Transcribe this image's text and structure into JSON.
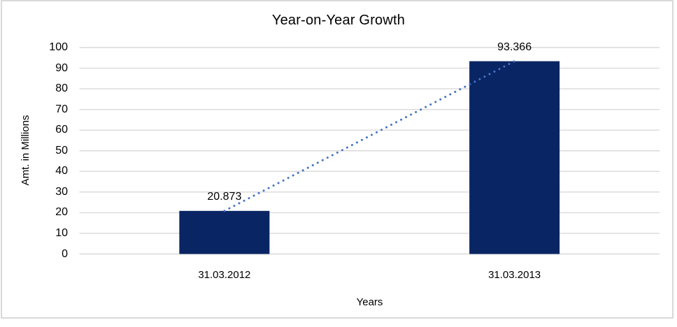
{
  "chart_data": {
    "type": "bar",
    "title": "Year-on-Year Growth",
    "xlabel": "Years",
    "ylabel": "Amt. in Millions",
    "categories": [
      "31.03.2012",
      "31.03.2013"
    ],
    "values": [
      20.873,
      93.366
    ],
    "data_labels": [
      "20.873",
      "93.366"
    ],
    "ylim": [
      0,
      100
    ],
    "ytick_step": 10,
    "ytick_labels": [
      "0",
      "10",
      "20",
      "30",
      "40",
      "50",
      "60",
      "70",
      "80",
      "90",
      "100"
    ],
    "grid": true,
    "legend_position": "none",
    "trendline": {
      "type": "linear",
      "style": "dotted",
      "color": "#4472c4"
    },
    "colors": {
      "bar": "#0a2563",
      "gridline": "#d9d9d9",
      "frame": "#d9d9d9",
      "text": "#000000",
      "background": "#ffffff"
    }
  }
}
